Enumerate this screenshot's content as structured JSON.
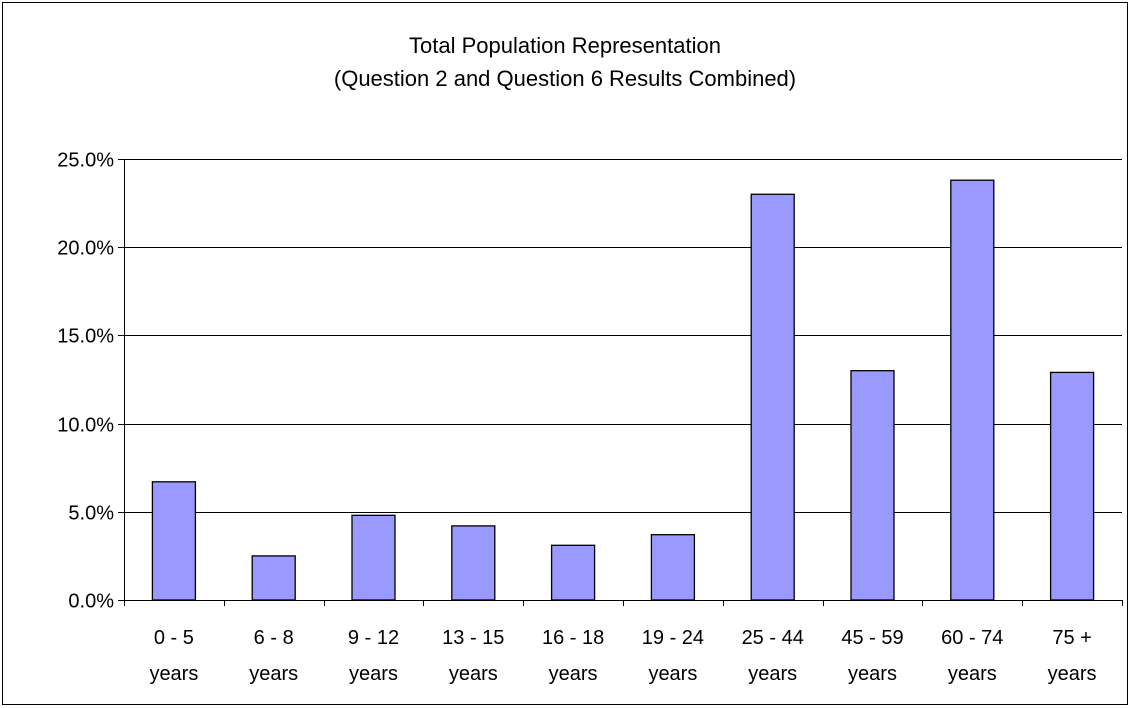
{
  "chart_data": {
    "type": "bar",
    "title": "Total Population Representation",
    "subtitle": "(Question 2 and Question 6 Results Combined)",
    "xlabel": "",
    "ylabel": "",
    "categories": [
      [
        "0 - 5",
        "years"
      ],
      [
        "6 - 8",
        "years"
      ],
      [
        "9 - 12",
        "years"
      ],
      [
        "13 - 15",
        "years"
      ],
      [
        "16 - 18",
        "years"
      ],
      [
        "19 - 24",
        "years"
      ],
      [
        "25 - 44",
        "years"
      ],
      [
        "45 - 59",
        "years"
      ],
      [
        "60 - 74",
        "years"
      ],
      [
        "75 +",
        "years"
      ]
    ],
    "values": [
      6.7,
      2.5,
      4.8,
      4.2,
      3.1,
      3.7,
      23.0,
      13.0,
      23.8,
      12.9
    ],
    "ylim": [
      0,
      25
    ],
    "yticks": [
      0,
      5,
      10,
      15,
      20,
      25
    ],
    "ytick_labels": [
      "0.0%",
      "5.0%",
      "10.0%",
      "15.0%",
      "20.0%",
      "25.0%"
    ],
    "grid": true,
    "legend": "none",
    "colors": {
      "bar_fill": "#9999ff",
      "bar_stroke": "#000000",
      "grid": "#000000",
      "background": "#ffffff"
    }
  }
}
